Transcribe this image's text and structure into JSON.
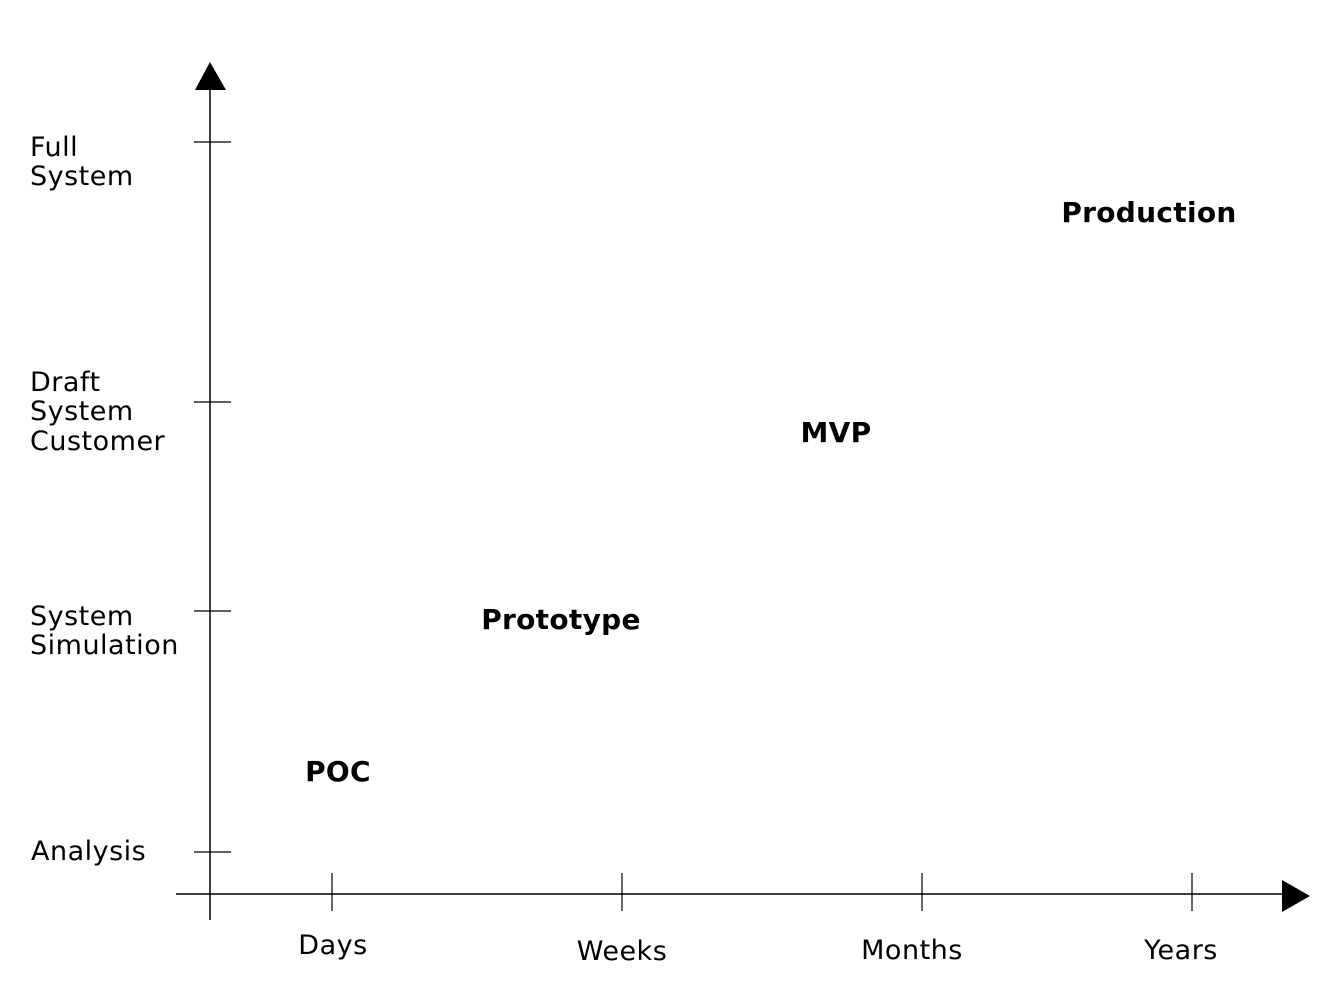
{
  "y_axis": {
    "levels": [
      {
        "lines": [
          "Full",
          "System"
        ]
      },
      {
        "lines": [
          "Draft",
          "System",
          "Customer"
        ]
      },
      {
        "lines": [
          "System",
          "Simulation"
        ]
      },
      {
        "lines": [
          "Analysis"
        ]
      }
    ]
  },
  "x_axis": {
    "ticks": [
      "Days",
      "Weeks",
      "Months",
      "Years"
    ]
  },
  "stages": [
    "Production",
    "MVP",
    "Prototype",
    "POC"
  ]
}
